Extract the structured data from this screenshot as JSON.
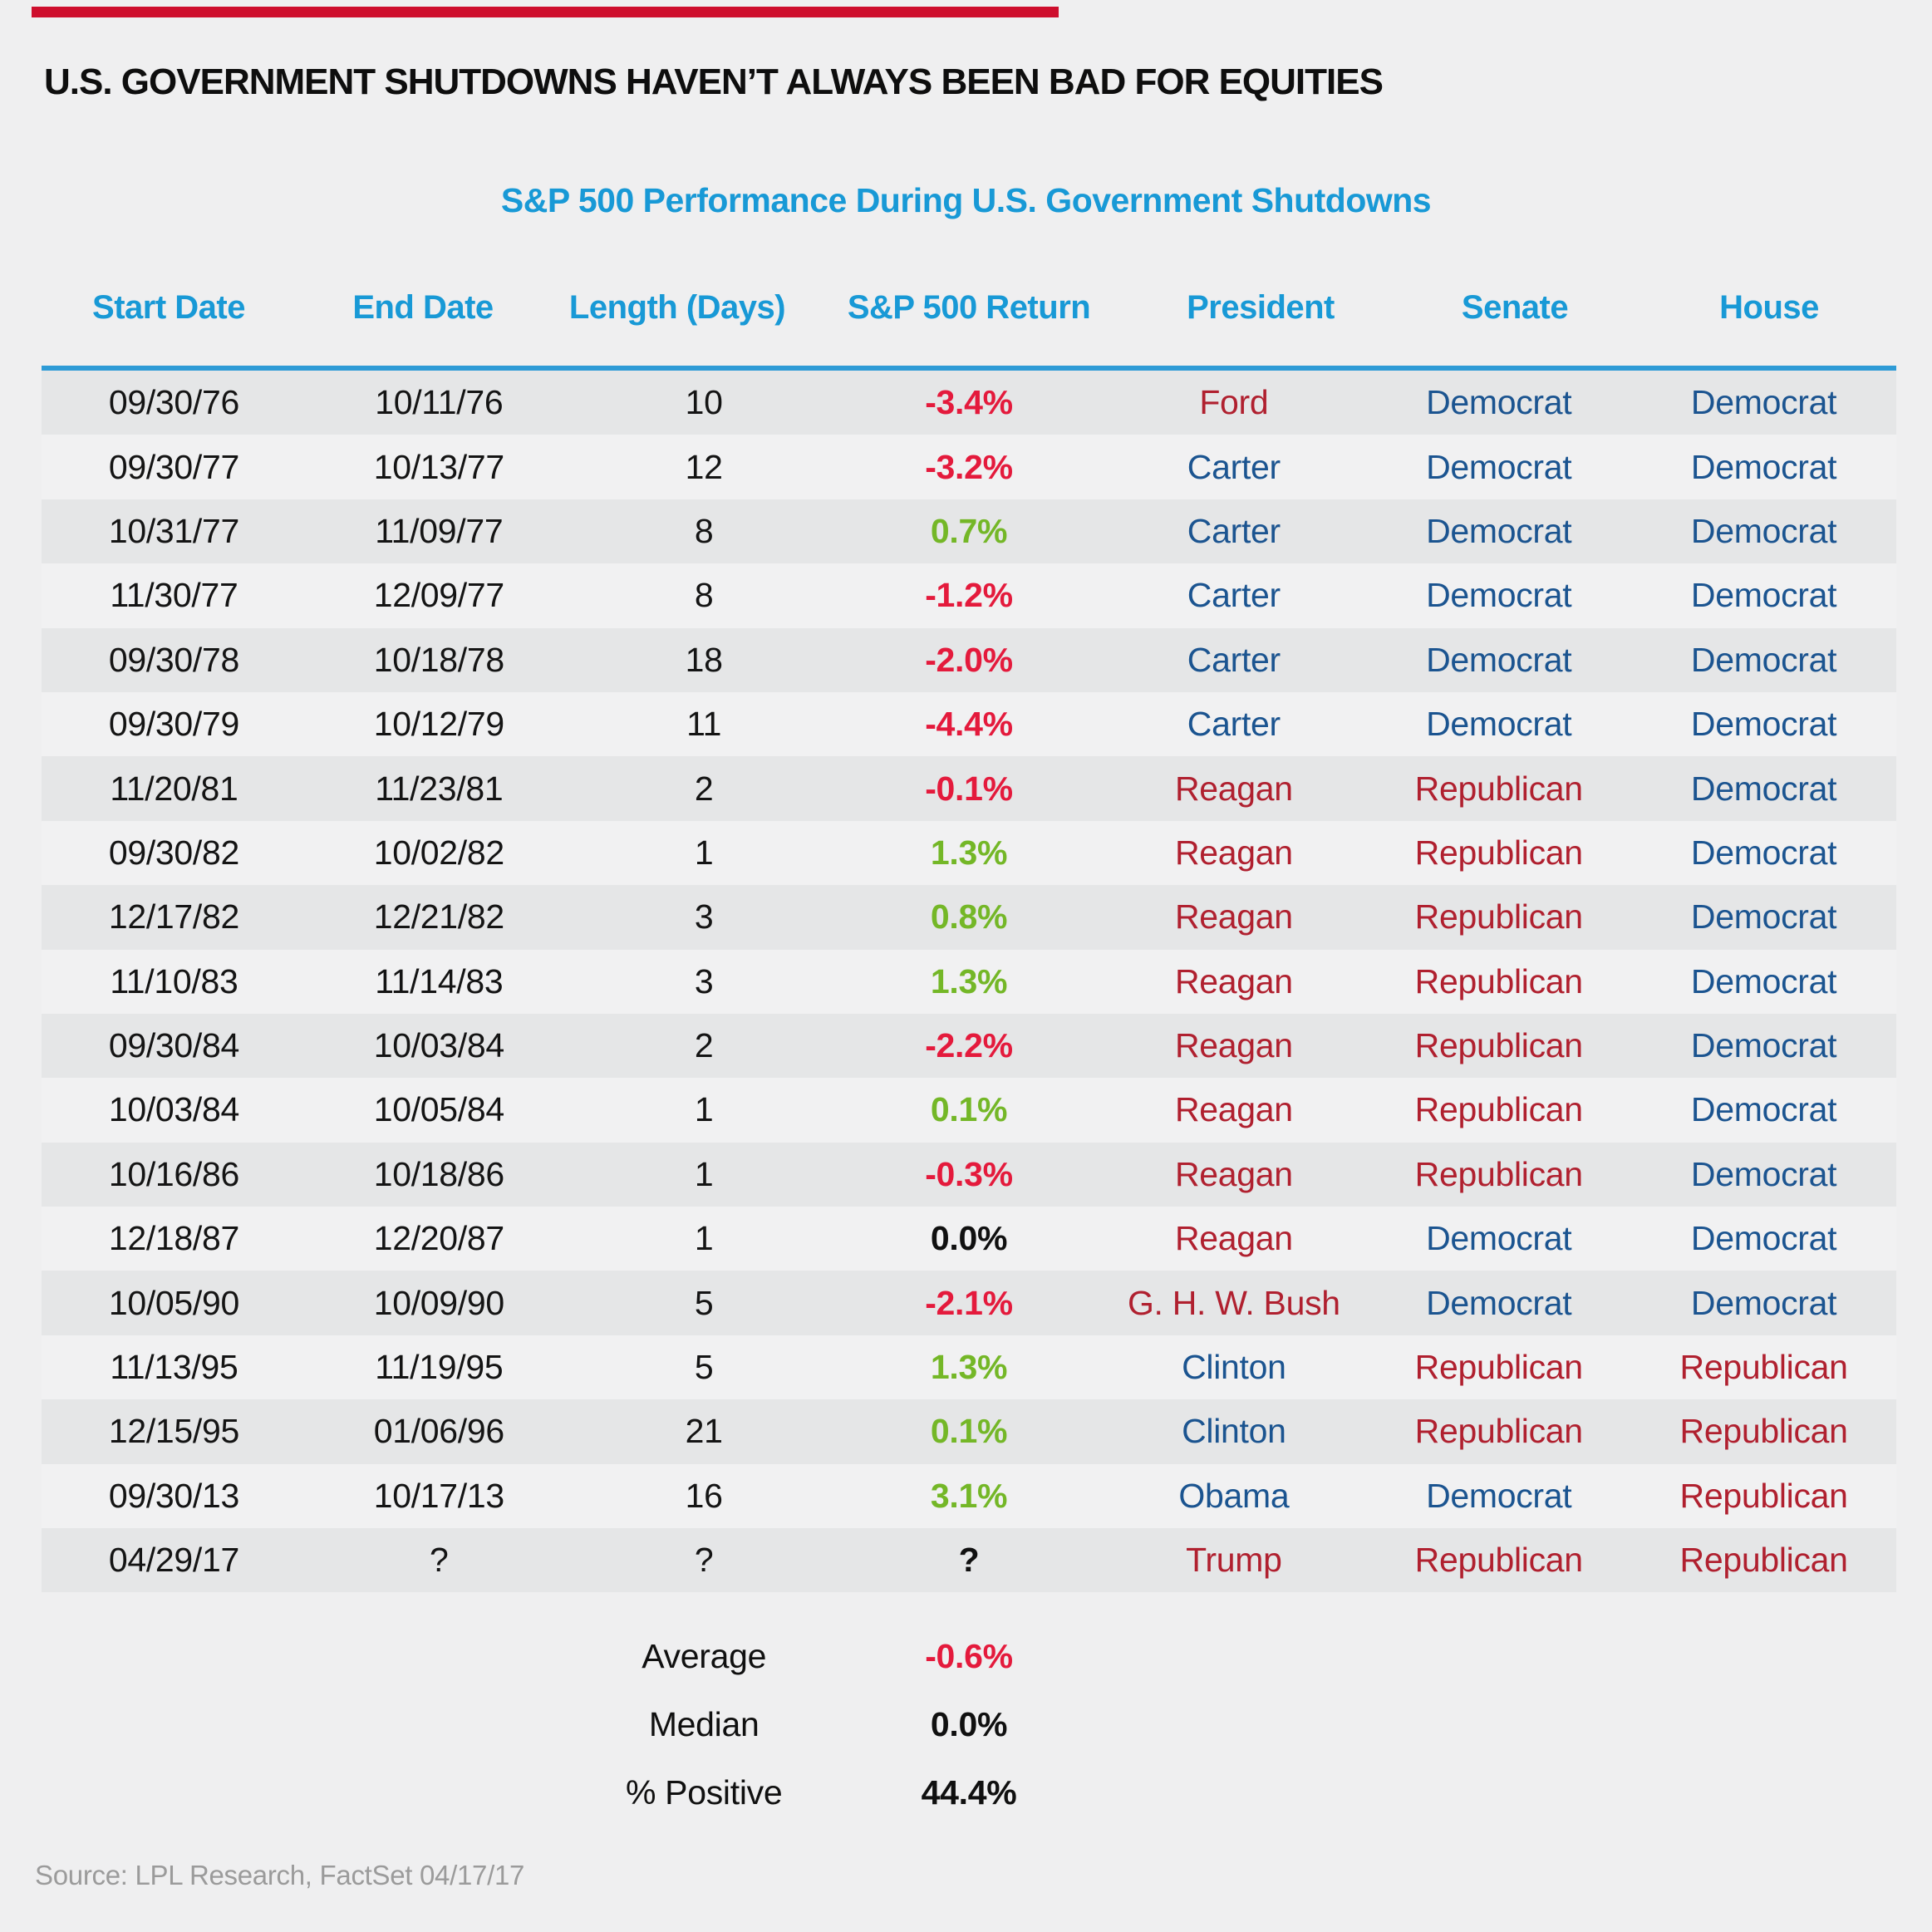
{
  "page": {
    "title": "U.S. GOVERNMENT SHUTDOWNS HAVEN’T ALWAYS BEEN BAD FOR EQUITIES",
    "subtitle": "S&P 500 Performance During U.S. Government Shutdowns",
    "source": "Source: LPL Research, FactSet  04/17/17"
  },
  "colors": {
    "page_bg": "#efeff0",
    "row_gray": "#e5e6e7",
    "row_light": "#f1f1f2",
    "header_blue": "#1899d6",
    "rule_blue": "#2e9bd6",
    "red": "#e41a3c",
    "green": "#74b727",
    "dark_red": "#b0202f",
    "navy": "#1b5490",
    "ink": "#141414",
    "source_gray": "#9b9b9b",
    "bar_red": "#ce0e2d"
  },
  "chart_data": {
    "type": "table",
    "title": "S&P 500 Performance During U.S. Government Shutdowns",
    "columns": [
      "Start Date",
      "End Date",
      "Length (Days)",
      "S&P 500 Return",
      "President",
      "Senate",
      "House"
    ],
    "rows": [
      {
        "start": "09/30/76",
        "end": "10/11/76",
        "length": "10",
        "return": "-3.4%",
        "return_sign": "negative",
        "president": "Ford",
        "president_party": "republican",
        "senate": "Democrat",
        "senate_party": "democrat",
        "house": "Democrat",
        "house_party": "democrat"
      },
      {
        "start": "09/30/77",
        "end": "10/13/77",
        "length": "12",
        "return": "-3.2%",
        "return_sign": "negative",
        "president": "Carter",
        "president_party": "democrat",
        "senate": "Democrat",
        "senate_party": "democrat",
        "house": "Democrat",
        "house_party": "democrat"
      },
      {
        "start": "10/31/77",
        "end": "11/09/77",
        "length": "8",
        "return": "0.7%",
        "return_sign": "positive",
        "president": "Carter",
        "president_party": "democrat",
        "senate": "Democrat",
        "senate_party": "democrat",
        "house": "Democrat",
        "house_party": "democrat"
      },
      {
        "start": "11/30/77",
        "end": "12/09/77",
        "length": "8",
        "return": "-1.2%",
        "return_sign": "negative",
        "president": "Carter",
        "president_party": "democrat",
        "senate": "Democrat",
        "senate_party": "democrat",
        "house": "Democrat",
        "house_party": "democrat"
      },
      {
        "start": "09/30/78",
        "end": "10/18/78",
        "length": "18",
        "return": "-2.0%",
        "return_sign": "negative",
        "president": "Carter",
        "president_party": "democrat",
        "senate": "Democrat",
        "senate_party": "democrat",
        "house": "Democrat",
        "house_party": "democrat"
      },
      {
        "start": "09/30/79",
        "end": "10/12/79",
        "length": "11",
        "return": "-4.4%",
        "return_sign": "negative",
        "president": "Carter",
        "president_party": "democrat",
        "senate": "Democrat",
        "senate_party": "democrat",
        "house": "Democrat",
        "house_party": "democrat"
      },
      {
        "start": "11/20/81",
        "end": "11/23/81",
        "length": "2",
        "return": "-0.1%",
        "return_sign": "negative",
        "president": "Reagan",
        "president_party": "republican",
        "senate": "Republican",
        "senate_party": "republican",
        "house": "Democrat",
        "house_party": "democrat"
      },
      {
        "start": "09/30/82",
        "end": "10/02/82",
        "length": "1",
        "return": "1.3%",
        "return_sign": "positive",
        "president": "Reagan",
        "president_party": "republican",
        "senate": "Republican",
        "senate_party": "republican",
        "house": "Democrat",
        "house_party": "democrat"
      },
      {
        "start": "12/17/82",
        "end": "12/21/82",
        "length": "3",
        "return": "0.8%",
        "return_sign": "positive",
        "president": "Reagan",
        "president_party": "republican",
        "senate": "Republican",
        "senate_party": "republican",
        "house": "Democrat",
        "house_party": "democrat"
      },
      {
        "start": "11/10/83",
        "end": "11/14/83",
        "length": "3",
        "return": "1.3%",
        "return_sign": "positive",
        "president": "Reagan",
        "president_party": "republican",
        "senate": "Republican",
        "senate_party": "republican",
        "house": "Democrat",
        "house_party": "democrat"
      },
      {
        "start": "09/30/84",
        "end": "10/03/84",
        "length": "2",
        "return": "-2.2%",
        "return_sign": "negative",
        "president": "Reagan",
        "president_party": "republican",
        "senate": "Republican",
        "senate_party": "republican",
        "house": "Democrat",
        "house_party": "democrat"
      },
      {
        "start": "10/03/84",
        "end": "10/05/84",
        "length": "1",
        "return": "0.1%",
        "return_sign": "positive",
        "president": "Reagan",
        "president_party": "republican",
        "senate": "Republican",
        "senate_party": "republican",
        "house": "Democrat",
        "house_party": "democrat"
      },
      {
        "start": "10/16/86",
        "end": "10/18/86",
        "length": "1",
        "return": "-0.3%",
        "return_sign": "negative",
        "president": "Reagan",
        "president_party": "republican",
        "senate": "Republican",
        "senate_party": "republican",
        "house": "Democrat",
        "house_party": "democrat"
      },
      {
        "start": "12/18/87",
        "end": "12/20/87",
        "length": "1",
        "return": "0.0%",
        "return_sign": "neutral",
        "president": "Reagan",
        "president_party": "republican",
        "senate": "Democrat",
        "senate_party": "democrat",
        "house": "Democrat",
        "house_party": "democrat"
      },
      {
        "start": "10/05/90",
        "end": "10/09/90",
        "length": "5",
        "return": "-2.1%",
        "return_sign": "negative",
        "president": "G. H. W. Bush",
        "president_party": "republican",
        "senate": "Democrat",
        "senate_party": "democrat",
        "house": "Democrat",
        "house_party": "democrat"
      },
      {
        "start": "11/13/95",
        "end": "11/19/95",
        "length": "5",
        "return": "1.3%",
        "return_sign": "positive",
        "president": "Clinton",
        "president_party": "democrat",
        "senate": "Republican",
        "senate_party": "republican",
        "house": "Republican",
        "house_party": "republican"
      },
      {
        "start": "12/15/95",
        "end": "01/06/96",
        "length": "21",
        "return": "0.1%",
        "return_sign": "positive",
        "president": "Clinton",
        "president_party": "democrat",
        "senate": "Republican",
        "senate_party": "republican",
        "house": "Republican",
        "house_party": "republican"
      },
      {
        "start": "09/30/13",
        "end": "10/17/13",
        "length": "16",
        "return": "3.1%",
        "return_sign": "positive",
        "president": "Obama",
        "president_party": "democrat",
        "senate": "Democrat",
        "senate_party": "democrat",
        "house": "Republican",
        "house_party": "republican"
      },
      {
        "start": "04/29/17",
        "end": "?",
        "length": "?",
        "return": "?",
        "return_sign": "neutral",
        "president": "Trump",
        "president_party": "republican",
        "senate": "Republican",
        "senate_party": "republican",
        "house": "Republican",
        "house_party": "republican"
      }
    ],
    "summary": {
      "average_label": "Average",
      "average_value": "-0.6%",
      "median_label": "Median",
      "median_value": "0.0%",
      "positive_label": "% Positive",
      "positive_value": "44.4%"
    }
  }
}
